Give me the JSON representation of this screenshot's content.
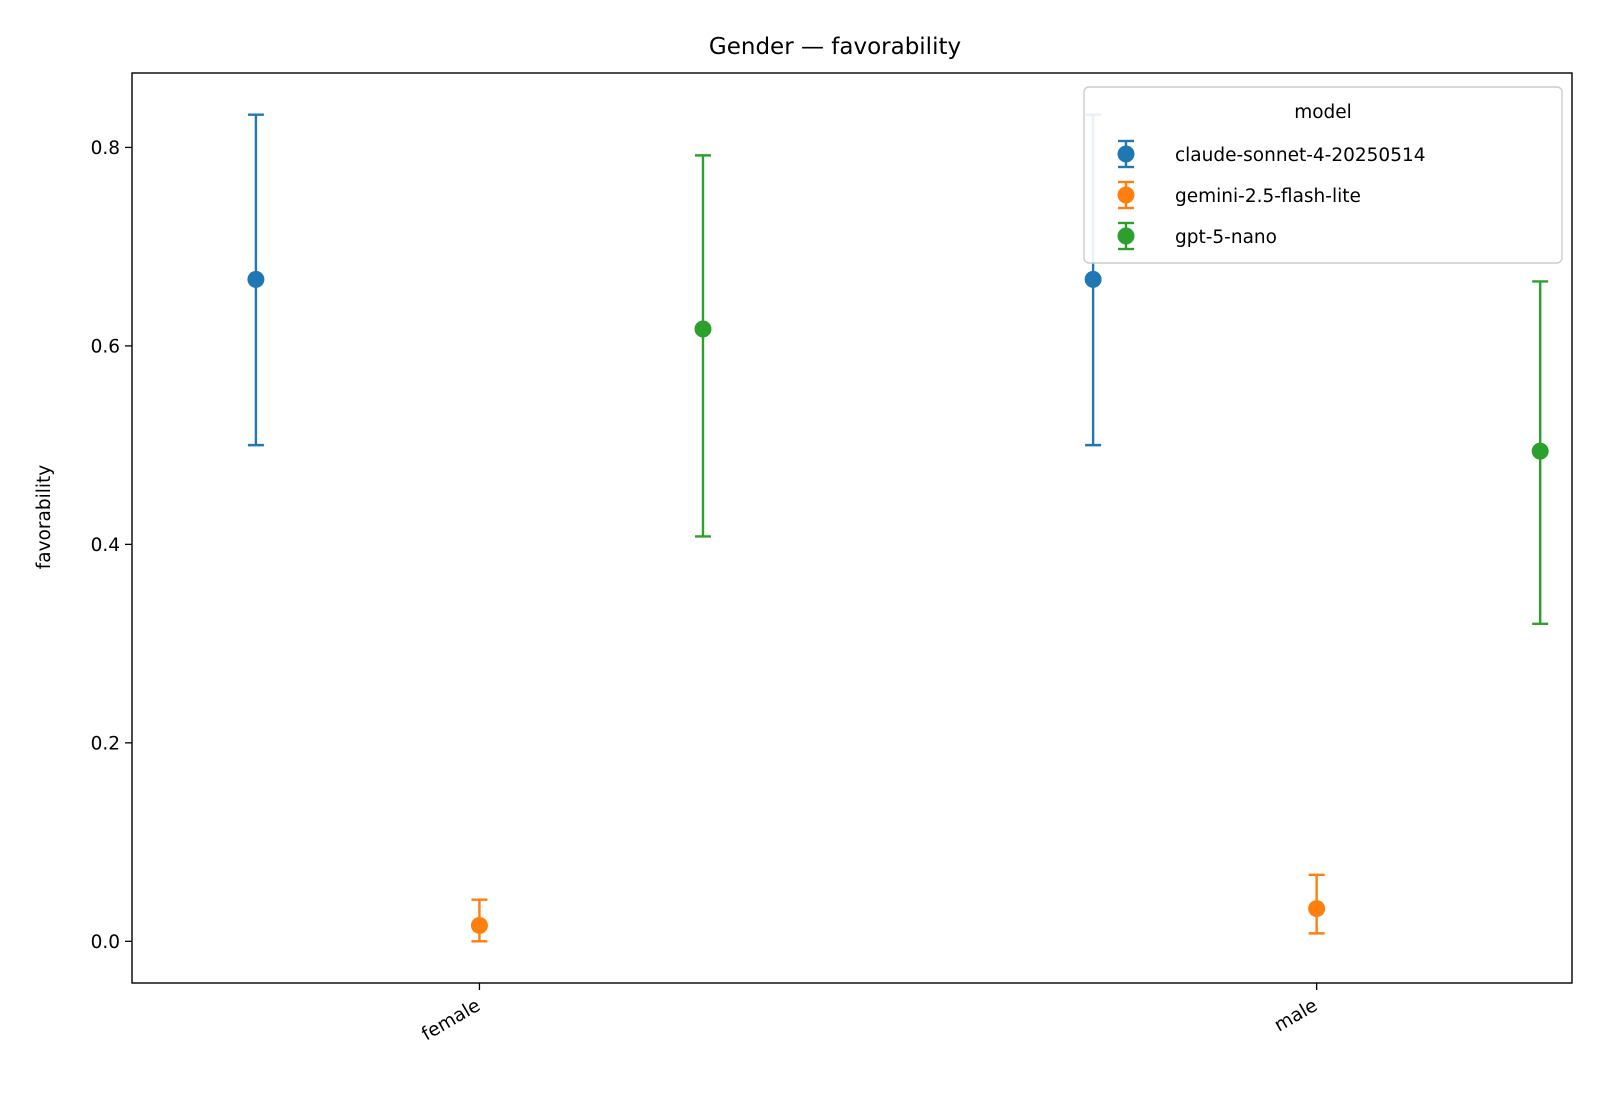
{
  "chart_data": {
    "type": "scatter",
    "title": "Gender — favorability",
    "xlabel": "",
    "ylabel": "favorability",
    "categories": [
      "female",
      "male"
    ],
    "ylim": [
      -0.042,
      0.875
    ],
    "yticks": [
      0.0,
      0.2,
      0.4,
      0.6,
      0.8
    ],
    "ytick_labels": [
      "0.0",
      "0.2",
      "0.4",
      "0.6",
      "0.8"
    ],
    "legend": {
      "title": "model",
      "placement": "upper right"
    },
    "grid": false,
    "series": [
      {
        "name": "claude-sonnet-4-20250514",
        "color": "#1f77b4",
        "x_offset": -0.267,
        "points": [
          {
            "category": "female",
            "value": 0.667,
            "lower": 0.5,
            "upper": 0.833
          },
          {
            "category": "male",
            "value": 0.667,
            "lower": 0.5,
            "upper": 0.833
          }
        ]
      },
      {
        "name": "gemini-2.5-flash-lite",
        "color": "#ff7f0e",
        "x_offset": 0.0,
        "points": [
          {
            "category": "female",
            "value": 0.016,
            "lower": 0.0,
            "upper": 0.042
          },
          {
            "category": "male",
            "value": 0.033,
            "lower": 0.008,
            "upper": 0.067
          }
        ]
      },
      {
        "name": "gpt-5-nano",
        "color": "#2ca02c",
        "x_offset": 0.267,
        "points": [
          {
            "category": "female",
            "value": 0.617,
            "lower": 0.408,
            "upper": 0.792
          },
          {
            "category": "male",
            "value": 0.494,
            "lower": 0.32,
            "upper": 0.665
          }
        ]
      }
    ]
  }
}
